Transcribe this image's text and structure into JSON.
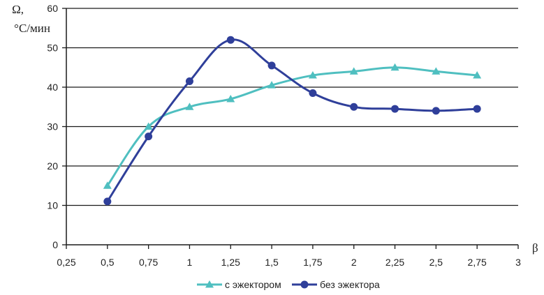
{
  "chart_data": {
    "type": "line",
    "ylabel_line1": "Ω,",
    "ylabel_line2": "°С/мин",
    "xlabel": "β",
    "xlim": [
      0.25,
      3
    ],
    "ylim": [
      0,
      60
    ],
    "grid": "horizontal",
    "legend_position": "bottom",
    "x_ticks": [
      "0,25",
      "0,5",
      "0,75",
      "1",
      "1,25",
      "1,5",
      "1,75",
      "2",
      "2,25",
      "2,5",
      "2,75",
      "3"
    ],
    "y_ticks": [
      "0",
      "10",
      "20",
      "30",
      "40",
      "50",
      "60"
    ],
    "series": [
      {
        "name": "с эжектором",
        "color": "#4fbfc0",
        "marker": "triangle",
        "x": [
          0.5,
          0.75,
          1,
          1.25,
          1.5,
          1.75,
          2,
          2.25,
          2.5,
          2.75
        ],
        "y": [
          15,
          30,
          35,
          37,
          40.5,
          43,
          44,
          45,
          44,
          43
        ]
      },
      {
        "name": "без эжектора",
        "color": "#2f3f9a",
        "marker": "circle",
        "x": [
          0.5,
          0.75,
          1,
          1.25,
          1.5,
          1.75,
          2,
          2.25,
          2.5,
          2.75
        ],
        "y": [
          11,
          27.5,
          41.5,
          52,
          45.5,
          38.5,
          35,
          34.5,
          34,
          34.5
        ]
      }
    ]
  }
}
